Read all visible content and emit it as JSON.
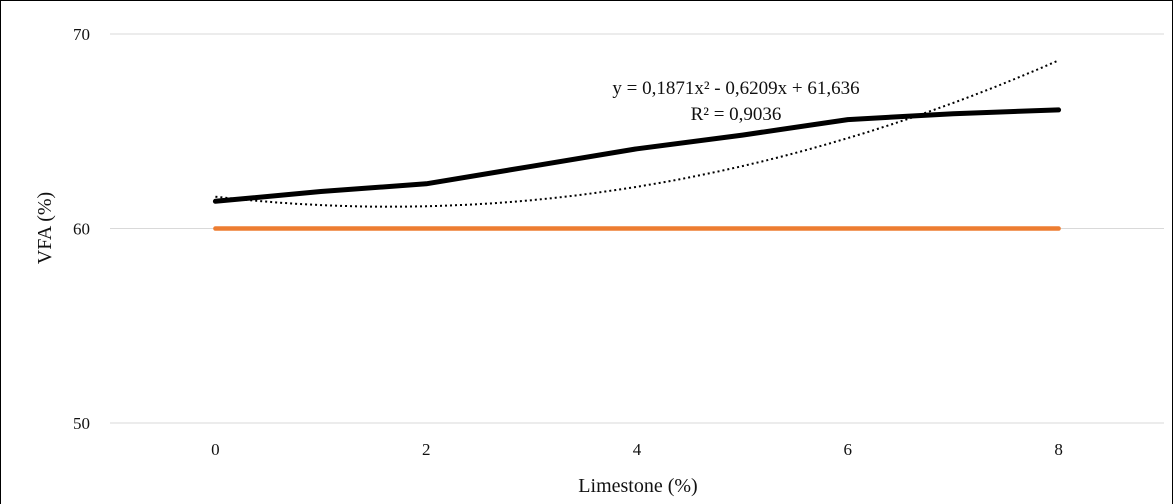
{
  "chart_data": {
    "type": "line",
    "xlabel": "Limestone (%)",
    "ylabel": "VFA (%)",
    "xlim": [
      -1,
      9
    ],
    "ylim": [
      50,
      70
    ],
    "x_ticks": [
      0,
      2,
      4,
      6,
      8
    ],
    "y_ticks": [
      50,
      60,
      70
    ],
    "grid": "horizontal",
    "series": [
      {
        "color": "#000000",
        "x": [
          0,
          1,
          2,
          3,
          4,
          5,
          6,
          7,
          8
        ],
        "values": [
          61.4,
          61.9,
          62.3,
          63.2,
          64.1,
          64.8,
          65.6,
          65.9,
          66.1
        ]
      },
      {
        "color": "#ED7D31",
        "x": [
          0,
          8
        ],
        "values": [
          60.0,
          60.0
        ]
      }
    ],
    "trendline": {
      "style": "dotted",
      "color": "#000000",
      "coefficients": [
        0.1871,
        -0.6209,
        61.636
      ]
    },
    "annotations": {
      "equation": "y = 0,1871x² - 0,6209x + 61,636",
      "r_squared": "R² = 0,9036"
    }
  }
}
